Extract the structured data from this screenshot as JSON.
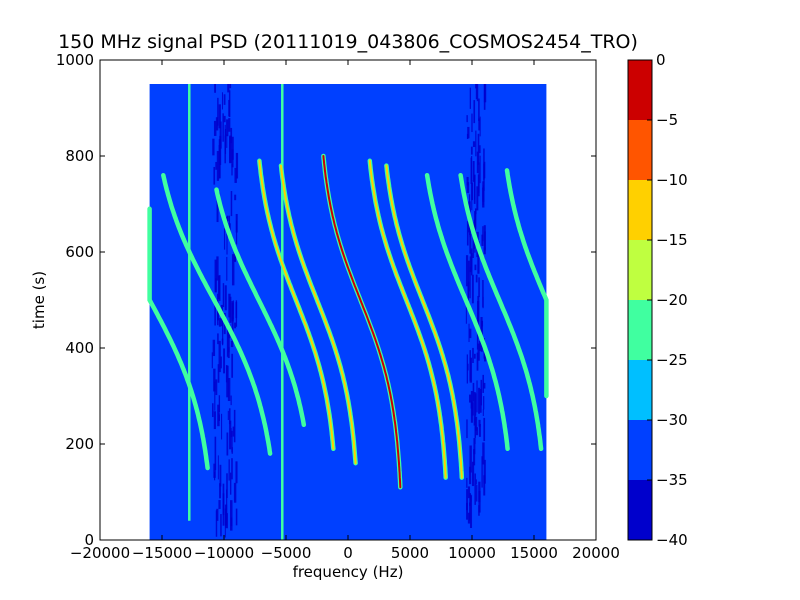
{
  "chart_data": {
    "type": "heatmap",
    "title": "150 MHz signal PSD (20111019_043806_COSMOS2454_TRO)",
    "xlabel": "frequency (Hz)",
    "ylabel": "time (s)",
    "xlim": [
      -20000,
      20000
    ],
    "ylim": [
      0,
      1000
    ],
    "xticks": [
      "−20000",
      "−15000",
      "−10000",
      "−5000",
      "0",
      "5000",
      "10000",
      "15000",
      "20000"
    ],
    "xtick_values": [
      -20000,
      -15000,
      -10000,
      -5000,
      0,
      5000,
      10000,
      15000,
      20000
    ],
    "yticks": [
      "0",
      "200",
      "400",
      "600",
      "800",
      "1000"
    ],
    "ytick_values": [
      0,
      200,
      400,
      600,
      800,
      1000
    ],
    "data_extent": {
      "freq_min": -16000,
      "freq_max": 16000,
      "time_min": 0,
      "time_max": 950
    },
    "background_level": -35,
    "colorbar": {
      "ticks": [
        "0",
        "−5",
        "−10",
        "−15",
        "−20",
        "−25",
        "−30",
        "−35",
        "−40"
      ],
      "tick_values": [
        0,
        -5,
        -10,
        -15,
        -20,
        -25,
        -30,
        -35,
        -40
      ],
      "levels": [
        -40,
        -35,
        -30,
        -25,
        -20,
        -15,
        -10,
        -5,
        0
      ],
      "colors": [
        "#0000cc",
        "#0040ff",
        "#00bfff",
        "#40ffa0",
        "#bfff40",
        "#ffd000",
        "#ff5500",
        "#cc0000"
      ]
    },
    "vertical_lines": [
      {
        "freq": -12800,
        "time_min": 40,
        "time_max": 950,
        "level": -25
      },
      {
        "freq": -5300,
        "time_min": 0,
        "time_max": 950,
        "level": -25
      }
    ],
    "tracks": [
      {
        "f_center": -16000,
        "t_center": 500,
        "half_span": 4800,
        "curvature": 1.5,
        "t_start": 150,
        "t_end": 690,
        "level": -25
      },
      {
        "f_center": -10800,
        "t_center": 500,
        "half_span": 4800,
        "curvature": 1.5,
        "t_start": 180,
        "t_end": 760,
        "level": -25
      },
      {
        "f_center": -7200,
        "t_center": 500,
        "half_span": 4200,
        "curvature": 1.6,
        "t_start": 240,
        "t_end": 730,
        "level": -25
      },
      {
        "f_center": -4200,
        "t_center": 500,
        "half_span": 3200,
        "curvature": 1.7,
        "t_start": 190,
        "t_end": 790,
        "level": -15
      },
      {
        "f_center": -2500,
        "t_center": 500,
        "half_span": 3200,
        "curvature": 1.7,
        "t_start": 160,
        "t_end": 780,
        "level": -15
      },
      {
        "f_center": 1000,
        "t_center": 500,
        "half_span": 3200,
        "curvature": 1.7,
        "t_start": 110,
        "t_end": 800,
        "level": -5
      },
      {
        "f_center": 4700,
        "t_center": 500,
        "half_span": 3200,
        "curvature": 1.7,
        "t_start": 130,
        "t_end": 790,
        "level": -15
      },
      {
        "f_center": 6000,
        "t_center": 500,
        "half_span": 3200,
        "curvature": 1.7,
        "t_start": 130,
        "t_end": 780,
        "level": -15
      },
      {
        "f_center": 9500,
        "t_center": 500,
        "half_span": 3600,
        "curvature": 1.6,
        "t_start": 190,
        "t_end": 760,
        "level": -25
      },
      {
        "f_center": 12200,
        "t_center": 500,
        "half_span": 3600,
        "curvature": 1.6,
        "t_start": 190,
        "t_end": 760,
        "level": -25
      },
      {
        "f_center": 16000,
        "t_center": 500,
        "half_span": 3600,
        "curvature": 1.6,
        "t_start": 300,
        "t_end": 770,
        "level": -25
      }
    ],
    "noise_bands": [
      {
        "f_min": -11000,
        "f_max": -9000,
        "level": -40
      },
      {
        "f_min": 9500,
        "f_max": 11000,
        "level": -40
      }
    ],
    "grid": false,
    "legend": "none"
  }
}
